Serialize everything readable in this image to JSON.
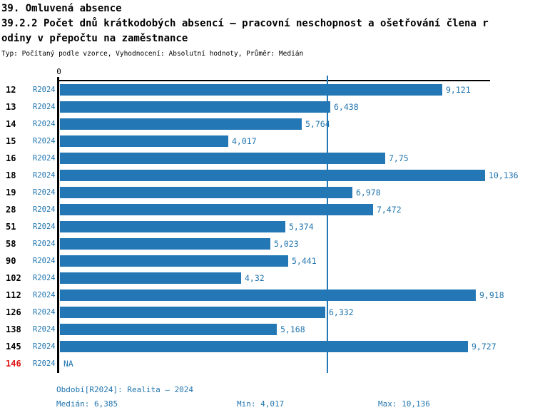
{
  "header": {
    "title_line1": "39. Omluvená absence",
    "title_line2": "39.2.2 Počet dnů krátkodobých absencí – pracovní neschopnost a ošetřování člena r",
    "title_line3": "odiny v přepočtu na zaměstnance",
    "meta": "Typ: Počítaný podle vzorce, Vyhodnocení: Absolutní hodnoty, Průměr: Medián"
  },
  "chart_data": {
    "type": "bar",
    "orientation": "horizontal",
    "title": "39.2.2 Počet dnů krátkodobých absencí – pracovní neschopnost a ošetřování člena rodiny v přepočtu na zaměstnance",
    "axis_zero_label": "0",
    "axis_max": 10.136,
    "median_value": 6.385,
    "legend_period": "R2024",
    "colors": {
      "bar": "#2277b4",
      "text_blue": "#1f74ae",
      "highlight_red": "#e01414",
      "axis_black": "#000000"
    },
    "rows": [
      {
        "id": "12",
        "period": "R2024",
        "value": 9.121,
        "value_label": "9,121",
        "highlight": false
      },
      {
        "id": "13",
        "period": "R2024",
        "value": 6.438,
        "value_label": "6,438",
        "highlight": false
      },
      {
        "id": "14",
        "period": "R2024",
        "value": 5.764,
        "value_label": "5,764",
        "highlight": false
      },
      {
        "id": "15",
        "period": "R2024",
        "value": 4.017,
        "value_label": "4,017",
        "highlight": false
      },
      {
        "id": "16",
        "period": "R2024",
        "value": 7.75,
        "value_label": "7,75",
        "highlight": false
      },
      {
        "id": "18",
        "period": "R2024",
        "value": 10.136,
        "value_label": "10,136",
        "highlight": false
      },
      {
        "id": "19",
        "period": "R2024",
        "value": 6.978,
        "value_label": "6,978",
        "highlight": false
      },
      {
        "id": "28",
        "period": "R2024",
        "value": 7.472,
        "value_label": "7,472",
        "highlight": false
      },
      {
        "id": "51",
        "period": "R2024",
        "value": 5.374,
        "value_label": "5,374",
        "highlight": false
      },
      {
        "id": "58",
        "period": "R2024",
        "value": 5.023,
        "value_label": "5,023",
        "highlight": false
      },
      {
        "id": "90",
        "period": "R2024",
        "value": 5.441,
        "value_label": "5,441",
        "highlight": false
      },
      {
        "id": "102",
        "period": "R2024",
        "value": 4.32,
        "value_label": "4,32",
        "highlight": false
      },
      {
        "id": "112",
        "period": "R2024",
        "value": 9.918,
        "value_label": "9,918",
        "highlight": false
      },
      {
        "id": "126",
        "period": "R2024",
        "value": 6.332,
        "value_label": "6,332",
        "highlight": false
      },
      {
        "id": "138",
        "period": "R2024",
        "value": 5.168,
        "value_label": "5,168",
        "highlight": false
      },
      {
        "id": "145",
        "period": "R2024",
        "value": 9.727,
        "value_label": "9,727",
        "highlight": false
      },
      {
        "id": "146",
        "period": "R2024",
        "value": null,
        "value_label": "NA",
        "highlight": true
      }
    ]
  },
  "footer": {
    "period_line": "Období[R2024]: Realita – 2024",
    "median": "Medián: 6,385",
    "min": "Min: 4,017",
    "max": "Max: 10,136"
  }
}
